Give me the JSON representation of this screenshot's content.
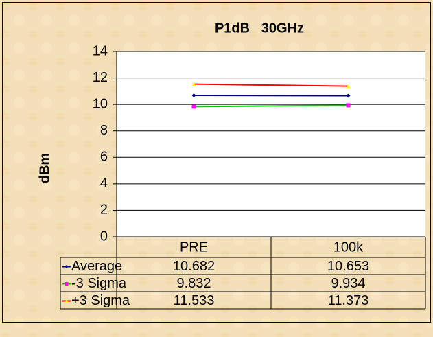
{
  "chart_data": {
    "type": "line",
    "title": "P1dB   30GHz",
    "y_label": "dBm",
    "categories": [
      "PRE",
      "100k"
    ],
    "series": [
      {
        "name": "Average",
        "color": "#000080",
        "marker_color": "#000080",
        "marker": "diamond",
        "values": [
          10.682,
          10.653
        ]
      },
      {
        "name": "-3 Sigma",
        "color": "#00cc00",
        "marker_color": "#ff00ff",
        "marker": "square",
        "values": [
          9.832,
          9.934
        ]
      },
      {
        "name": "+3 Sigma",
        "color": "#ff0000",
        "marker_color": "#ffff00",
        "marker": "triangle",
        "values": [
          11.533,
          11.373
        ]
      }
    ],
    "ylim": [
      0,
      14
    ],
    "yticks": [
      0,
      2,
      4,
      6,
      8,
      10,
      12,
      14
    ],
    "grid": true,
    "data_table": true
  }
}
